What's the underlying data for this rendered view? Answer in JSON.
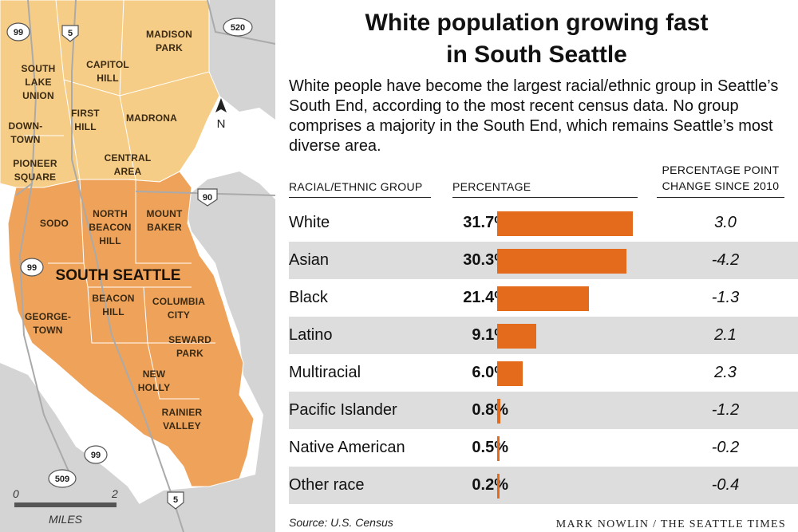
{
  "title": "White population growing fast in South Seattle",
  "title_lines": [
    "White population growing fast",
    "in South Seattle"
  ],
  "intro": "White people have become the largest racial/ethnic group in Seattle’s South End, according to the most recent census data. No group comprises a majority in the South End, which remains Seattle’s most diverse area.",
  "headers": {
    "group": "RACIAL/ETHNIC GROUP",
    "percentage": "PERCENTAGE",
    "change_line1": "PERCENTAGE POINT",
    "change_line2": "CHANGE SINCE 2010"
  },
  "source": "Source: U.S. Census",
  "credit": "MARK NOWLIN / THE SEATTLE TIMES",
  "colors": {
    "bar": "#e46a1c",
    "south_seattle": "#efa35a",
    "north_neighborhoods": "#f6cd86",
    "land": "#d4d4d4",
    "water": "#ffffff"
  },
  "chart_data": {
    "type": "bar",
    "orientation": "horizontal",
    "categories": [
      "White",
      "Asian",
      "Black",
      "Latino",
      "Multiracial",
      "Pacific Islander",
      "Native American",
      "Other race"
    ],
    "values": [
      31.7,
      30.3,
      21.4,
      9.1,
      6.0,
      0.8,
      0.5,
      0.2
    ],
    "value_labels": [
      "31.7%",
      "30.3%",
      "21.4%",
      "9.1%",
      "6.0%",
      "0.8%",
      "0.5%",
      "0.2%"
    ],
    "change_since_2010": [
      3.0,
      -4.2,
      -1.3,
      2.1,
      2.3,
      -1.2,
      -0.2,
      -0.4
    ],
    "change_labels": [
      "3.0",
      "-4.2",
      "-1.3",
      "2.1",
      "2.3",
      "-1.2",
      "-0.2",
      "-0.4"
    ],
    "xlim": [
      0,
      31.7
    ],
    "grid": false
  },
  "map": {
    "highlight_label": "SOUTH SEATTLE",
    "north_arrow": "N",
    "scale": {
      "start": "0",
      "end": "2",
      "unit": "MILES"
    },
    "neighborhoods": [
      {
        "id": "madison-park",
        "lines": [
          "MADISON",
          "PARK"
        ]
      },
      {
        "id": "capitol-hill",
        "lines": [
          "CAPITOL",
          "HILL"
        ]
      },
      {
        "id": "south-lake-union",
        "lines": [
          "SOUTH",
          "LAKE",
          "UNION"
        ]
      },
      {
        "id": "first-hill",
        "lines": [
          "FIRST",
          "HILL"
        ]
      },
      {
        "id": "madrona",
        "lines": [
          "MADRONA"
        ]
      },
      {
        "id": "downtown",
        "lines": [
          "DOWN-",
          "TOWN"
        ]
      },
      {
        "id": "central-area",
        "lines": [
          "CENTRAL",
          "AREA"
        ]
      },
      {
        "id": "pioneer-square",
        "lines": [
          "PIONEER",
          "SQUARE"
        ]
      },
      {
        "id": "sodo",
        "lines": [
          "SODO"
        ]
      },
      {
        "id": "north-beacon-hill",
        "lines": [
          "NORTH",
          "BEACON",
          "HILL"
        ]
      },
      {
        "id": "mount-baker",
        "lines": [
          "MOUNT",
          "BAKER"
        ]
      },
      {
        "id": "beacon-hill",
        "lines": [
          "BEACON",
          "HILL"
        ]
      },
      {
        "id": "columbia-city",
        "lines": [
          "COLUMBIA",
          "CITY"
        ]
      },
      {
        "id": "georgetown",
        "lines": [
          "GEORGE-",
          "TOWN"
        ]
      },
      {
        "id": "seward-park",
        "lines": [
          "SEWARD",
          "PARK"
        ]
      },
      {
        "id": "new-holly",
        "lines": [
          "NEW",
          "HOLLY"
        ]
      },
      {
        "id": "rainier-valley",
        "lines": [
          "RAINIER",
          "VALLEY"
        ]
      }
    ],
    "highways": [
      {
        "id": "hwy-99-north",
        "label": "99"
      },
      {
        "id": "i5-north",
        "label": "5"
      },
      {
        "id": "sr520",
        "label": "520"
      },
      {
        "id": "i90",
        "label": "90"
      },
      {
        "id": "hwy-99-mid",
        "label": "99"
      },
      {
        "id": "hwy-99-south",
        "label": "99"
      },
      {
        "id": "sr509",
        "label": "509"
      },
      {
        "id": "i5-south",
        "label": "5"
      }
    ]
  }
}
